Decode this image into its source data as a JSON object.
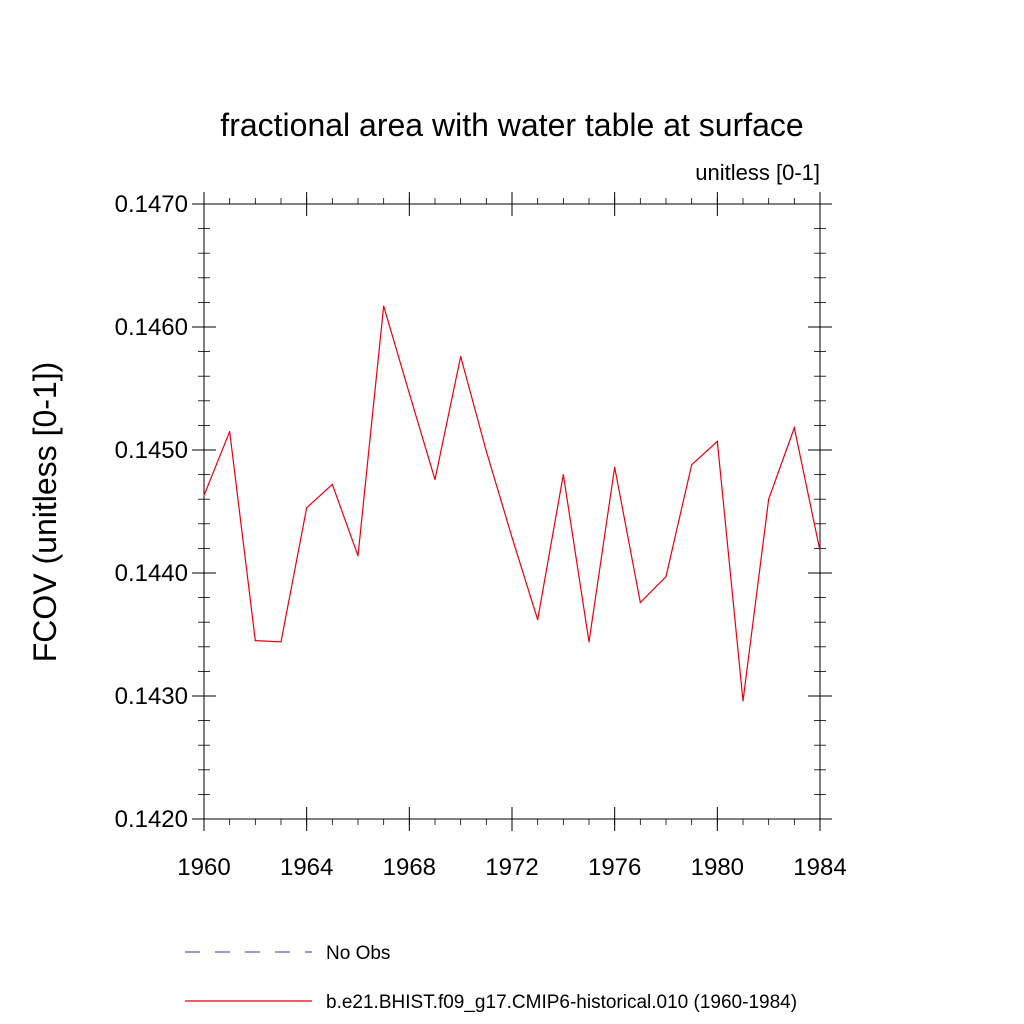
{
  "chart_data": {
    "type": "line",
    "title": "fractional area with water table at surface",
    "subtitle": "unitless [0-1]",
    "ylabel": "FCOV  (unitless [0-1])",
    "xlabel": "",
    "xlim": [
      1960,
      1984
    ],
    "ylim": [
      0.142,
      0.147
    ],
    "x_ticks": [
      "1960",
      "1964",
      "1968",
      "1972",
      "1976",
      "1980",
      "1984"
    ],
    "y_ticks": [
      "0.1420",
      "0.1430",
      "0.1440",
      "0.1450",
      "0.1460",
      "0.1470"
    ],
    "grid": false,
    "legend_placement": "bottom",
    "series": [
      {
        "name": "b.e21.BHIST.f09_g17.CMIP6-historical.010 (1960-1984)",
        "color": "#e8000b",
        "style": "solid",
        "x": [
          1960,
          1961,
          1962,
          1963,
          1964,
          1965,
          1966,
          1967,
          1968,
          1969,
          1970,
          1971,
          1972,
          1973,
          1974,
          1975,
          1976,
          1977,
          1978,
          1979,
          1980,
          1981,
          1982,
          1983,
          1984
        ],
        "y": [
          0.14463,
          0.14515,
          0.14345,
          0.14344,
          0.14453,
          0.14472,
          0.14414,
          0.14617,
          0.14546,
          0.14476,
          0.14576,
          0.14499,
          0.14429,
          0.14362,
          0.1448,
          0.14344,
          0.14486,
          0.14376,
          0.14397,
          0.14488,
          0.14507,
          0.14296,
          0.1446,
          0.14518,
          0.14418
        ]
      }
    ],
    "legend": [
      {
        "label": "No Obs",
        "color": "#6060c0",
        "style": "dashed"
      },
      {
        "label": "b.e21.BHIST.f09_g17.CMIP6-historical.010 (1960-1984)",
        "color": "#e8000b",
        "style": "solid"
      }
    ]
  }
}
